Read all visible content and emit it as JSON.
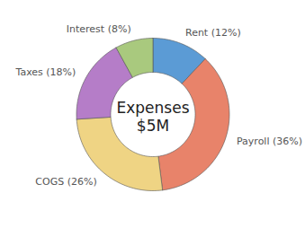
{
  "chart_data": {
    "type": "pie",
    "title": "Expenses",
    "subtitle": "$5M",
    "categories": [
      "Rent (12%)",
      "Payroll (36%)",
      "COGS (26%)",
      "Taxes (18%)",
      "Interest (8%)"
    ],
    "values": [
      12,
      36,
      26,
      18,
      8
    ],
    "colors": [
      "#5B9BD5",
      "#E8836A",
      "#EFD484",
      "#B57DC8",
      "#A9C97E"
    ]
  }
}
